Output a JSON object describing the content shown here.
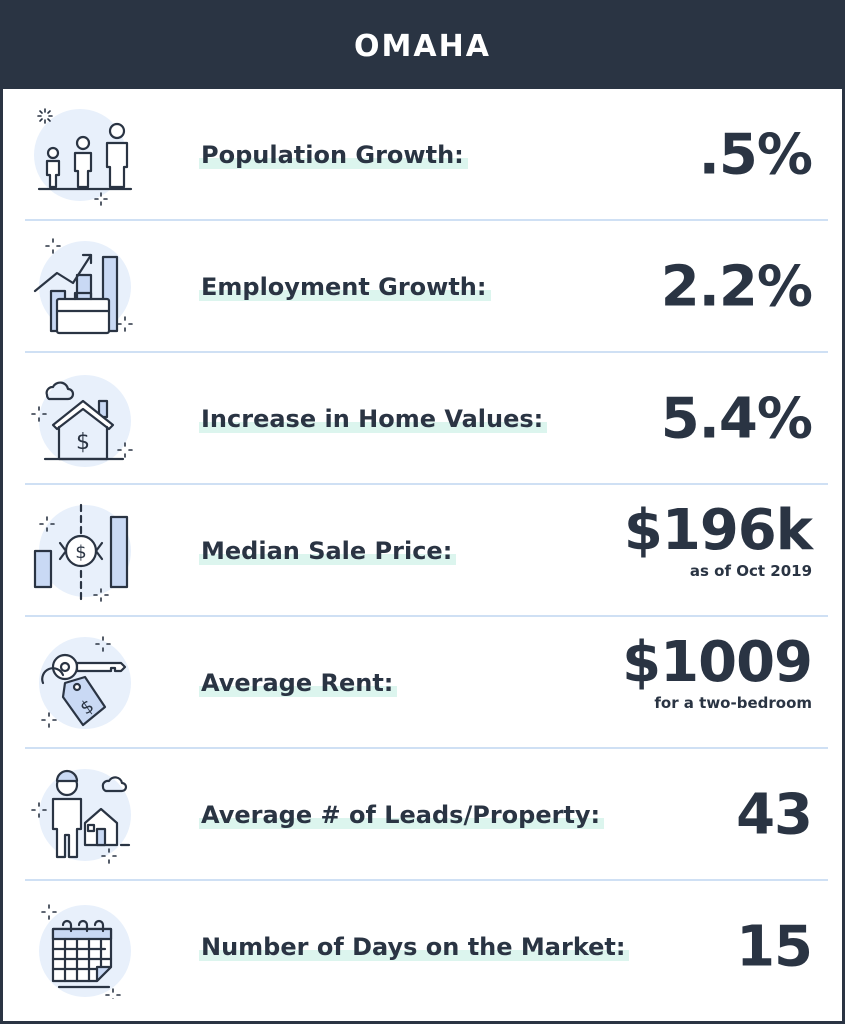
{
  "header": {
    "title": "OMAHA"
  },
  "rows": [
    {
      "label": "Population Growth:",
      "value": ".5%",
      "icon": "people-icon"
    },
    {
      "label": "Employment Growth:",
      "value": "2.2%",
      "icon": "briefcase-growth-icon"
    },
    {
      "label": "Increase in Home Values:",
      "value": "5.4%",
      "icon": "house-dollar-icon"
    },
    {
      "label": "Median Sale Price:",
      "value": "$196k",
      "sub": "as  of Oct 2019",
      "icon": "price-bars-icon"
    },
    {
      "label": "Average Rent:",
      "value": "$1009",
      "sub": "for a two-bedroom",
      "icon": "key-tag-icon"
    },
    {
      "label": "Average # of Leads/Property:",
      "value": "43",
      "icon": "person-house-icon"
    },
    {
      "label": "Number of Days on the Market:",
      "value": "15",
      "icon": "calendar-icon"
    }
  ],
  "colors": {
    "dark": "#2a3443",
    "accent_light_blue": "#c9d9f4",
    "highlight_mint": "#dcf5ee",
    "divider": "#cfe0f4"
  }
}
